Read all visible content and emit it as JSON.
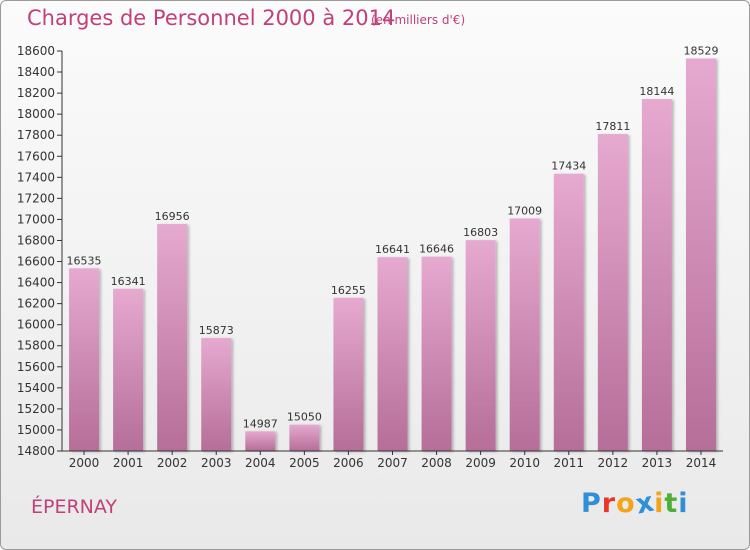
{
  "header": {
    "title": "Charges de Personnel 2000 à 2014",
    "subtitle": "(en milliers d'€)"
  },
  "footer": {
    "commune": "ÉPERNAY",
    "logo_letters": [
      "P",
      "r",
      "o",
      "x",
      "i",
      "t",
      "i"
    ],
    "logo_colors": [
      "#2f8fd8",
      "#e8372a",
      "#f2a51a",
      "#2f8fd8",
      "#f2a51a",
      "#4caf3a",
      "#2f8fd8"
    ]
  },
  "colors": {
    "accent": "#c0407a",
    "bar_top": "#e6a9cf",
    "bar_bottom": "#b56e98"
  },
  "chart_data": {
    "type": "bar",
    "title": "Charges de Personnel 2000 à 2014",
    "subtitle": "(en milliers d'€)",
    "xlabel": "",
    "ylabel": "",
    "categories": [
      "2000",
      "2001",
      "2002",
      "2003",
      "2004",
      "2005",
      "2006",
      "2007",
      "2008",
      "2009",
      "2010",
      "2011",
      "2012",
      "2013",
      "2014"
    ],
    "values": [
      16535,
      16341,
      16956,
      15873,
      14987,
      15050,
      16255,
      16641,
      16646,
      16803,
      17009,
      17434,
      17811,
      18144,
      18529
    ],
    "ylim": [
      14800,
      18600
    ],
    "yticks": [
      14800,
      15000,
      15200,
      15400,
      15600,
      15800,
      16000,
      16200,
      16400,
      16600,
      16800,
      17000,
      17200,
      17400,
      17600,
      17800,
      18000,
      18200,
      18400,
      18600
    ],
    "grid": false,
    "legend": "none"
  }
}
